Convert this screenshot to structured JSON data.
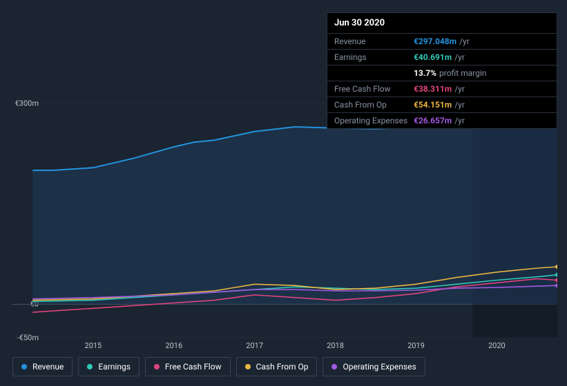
{
  "tooltip": {
    "date": "Jun 30 2020",
    "rows": [
      {
        "label": "Revenue",
        "value": "€297.048m",
        "unit": "/yr",
        "color": "#2394df"
      },
      {
        "label": "Earnings",
        "value": "€40.691m",
        "unit": "/yr",
        "color": "#30c9b8",
        "extra_value": "13.7%",
        "extra_label": "profit margin"
      },
      {
        "label": "Free Cash Flow",
        "value": "€38.311m",
        "unit": "/yr",
        "color": "#e1447d"
      },
      {
        "label": "Cash From Op",
        "value": "€54.151m",
        "unit": "/yr",
        "color": "#eab541"
      },
      {
        "label": "Operating Expenses",
        "value": "€26.657m",
        "unit": "/yr",
        "color": "#a259e0"
      }
    ]
  },
  "chart": {
    "type": "area-line",
    "background_color": "#1b2431",
    "grid_color": "#3a4350",
    "axis_font_size": 11,
    "axis_color": "#c0c5ce",
    "xlim": [
      2014.0,
      2020.75
    ],
    "ylim": [
      -50,
      300
    ],
    "yticks": [
      {
        "v": 300,
        "label": "€300m"
      },
      {
        "v": 0,
        "label": "€0"
      },
      {
        "v": -50,
        "label": "-€50m"
      }
    ],
    "xticks": [
      {
        "v": 2015,
        "label": "2015"
      },
      {
        "v": 2016,
        "label": "2016"
      },
      {
        "v": 2017,
        "label": "2017"
      },
      {
        "v": 2018,
        "label": "2018"
      },
      {
        "v": 2019,
        "label": "2019"
      },
      {
        "v": 2020,
        "label": "2020"
      }
    ],
    "cursor_x": 2020.5,
    "cursor_color": "#0e1520",
    "series": [
      {
        "name": "Revenue",
        "color": "#2394df",
        "fill": true,
        "fill_color": "#1e3b5a",
        "fill_opacity": 0.55,
        "line_width": 2,
        "data": [
          [
            2014.25,
            200
          ],
          [
            2014.5,
            200
          ],
          [
            2015,
            204
          ],
          [
            2015.5,
            218
          ],
          [
            2016,
            235
          ],
          [
            2016.25,
            242
          ],
          [
            2016.5,
            245
          ],
          [
            2017,
            258
          ],
          [
            2017.5,
            265
          ],
          [
            2018,
            263
          ],
          [
            2018.5,
            262
          ],
          [
            2019,
            265
          ],
          [
            2019.5,
            273
          ],
          [
            2020,
            280
          ],
          [
            2020.5,
            297
          ],
          [
            2020.75,
            303
          ]
        ]
      },
      {
        "name": "Earnings",
        "color": "#30c9b8",
        "fill": false,
        "line_width": 1.6,
        "data": [
          [
            2014.25,
            4
          ],
          [
            2015,
            6
          ],
          [
            2015.5,
            10
          ],
          [
            2016,
            14
          ],
          [
            2016.5,
            18
          ],
          [
            2017,
            22
          ],
          [
            2017.5,
            26
          ],
          [
            2018,
            24
          ],
          [
            2018.5,
            22
          ],
          [
            2019,
            24
          ],
          [
            2019.5,
            30
          ],
          [
            2020,
            36
          ],
          [
            2020.5,
            41
          ],
          [
            2020.75,
            44
          ]
        ]
      },
      {
        "name": "Free Cash Flow",
        "color": "#e1447d",
        "fill": false,
        "line_width": 1.6,
        "data": [
          [
            2014.25,
            -12
          ],
          [
            2014.5,
            -10
          ],
          [
            2015,
            -6
          ],
          [
            2015.5,
            -2
          ],
          [
            2016,
            2
          ],
          [
            2016.5,
            6
          ],
          [
            2017,
            14
          ],
          [
            2017.5,
            10
          ],
          [
            2018,
            6
          ],
          [
            2018.5,
            10
          ],
          [
            2019,
            16
          ],
          [
            2019.5,
            26
          ],
          [
            2020,
            32
          ],
          [
            2020.5,
            38
          ],
          [
            2020.75,
            36
          ]
        ]
      },
      {
        "name": "Cash From Op",
        "color": "#eab541",
        "fill": false,
        "line_width": 1.6,
        "data": [
          [
            2014.25,
            6
          ],
          [
            2015,
            8
          ],
          [
            2015.5,
            12
          ],
          [
            2016,
            16
          ],
          [
            2016.5,
            20
          ],
          [
            2017,
            30
          ],
          [
            2017.5,
            28
          ],
          [
            2018,
            22
          ],
          [
            2018.5,
            24
          ],
          [
            2019,
            30
          ],
          [
            2019.5,
            40
          ],
          [
            2020,
            48
          ],
          [
            2020.5,
            54
          ],
          [
            2020.75,
            56
          ]
        ]
      },
      {
        "name": "Operating Expenses",
        "color": "#a259e0",
        "fill": false,
        "line_width": 1.6,
        "data": [
          [
            2014.25,
            8
          ],
          [
            2015,
            10
          ],
          [
            2015.5,
            12
          ],
          [
            2016,
            14
          ],
          [
            2016.5,
            18
          ],
          [
            2017,
            22
          ],
          [
            2017.5,
            22
          ],
          [
            2018,
            20
          ],
          [
            2018.5,
            20
          ],
          [
            2019,
            21
          ],
          [
            2019.5,
            24
          ],
          [
            2020,
            25
          ],
          [
            2020.5,
            27
          ],
          [
            2020.75,
            28
          ]
        ]
      }
    ],
    "legend": [
      {
        "label": "Revenue",
        "color": "#2394df"
      },
      {
        "label": "Earnings",
        "color": "#30c9b8"
      },
      {
        "label": "Free Cash Flow",
        "color": "#e1447d"
      },
      {
        "label": "Cash From Op",
        "color": "#eab541"
      },
      {
        "label": "Operating Expenses",
        "color": "#a259e0"
      }
    ]
  }
}
